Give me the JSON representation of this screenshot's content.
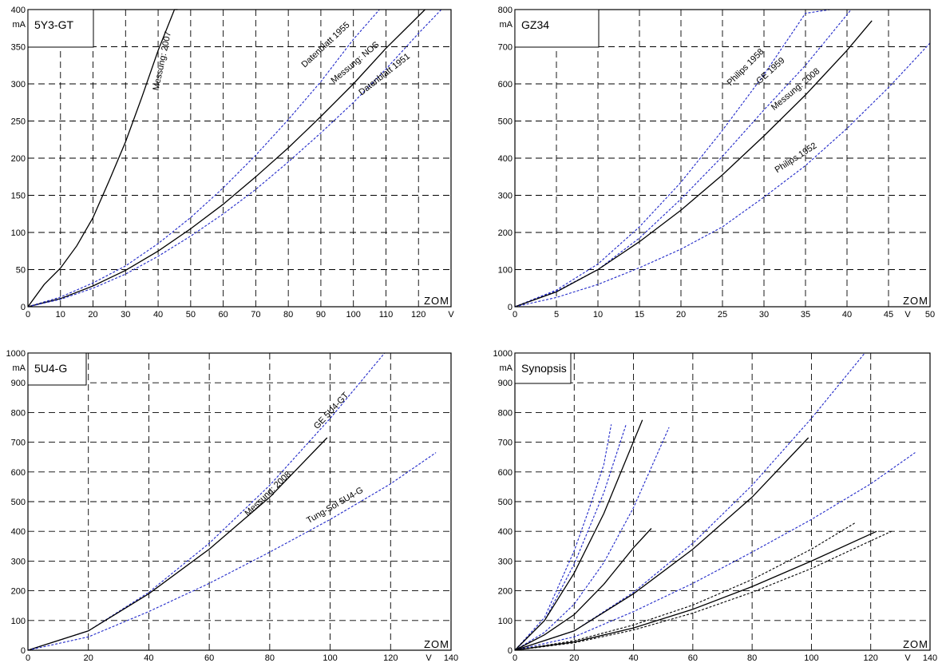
{
  "watermark": "ZOM",
  "chart_data": [
    {
      "type": "line",
      "title": "5Y3-GT",
      "unit_y": "mA",
      "unit_x": "V",
      "xlim": [
        0,
        130
      ],
      "ylim": [
        0,
        400
      ],
      "x_ticks": [
        "0",
        "10",
        "20",
        "30",
        "40",
        "50",
        "60",
        "70",
        "80",
        "90",
        "100",
        "110",
        "120"
      ],
      "y_ticks": [
        "0",
        "50",
        "100",
        "150",
        "200",
        "250",
        "300",
        "350",
        "400"
      ],
      "series": [
        {
          "name": "Messung: 2007",
          "style": "solid",
          "color": "#000000",
          "x": [
            0,
            5,
            10,
            15,
            20,
            25,
            30,
            35,
            40,
            45,
            46
          ],
          "y": [
            0,
            30,
            52,
            82,
            120,
            170,
            222,
            282,
            345,
            400,
            400
          ]
        },
        {
          "name": "Datenblatt 1955",
          "style": "dashed",
          "color": "#1f27c9",
          "x": [
            0,
            10,
            20,
            30,
            40,
            50,
            60,
            70,
            80,
            90,
            100,
            108
          ],
          "y": [
            0,
            13,
            32,
            55,
            85,
            120,
            160,
            204,
            252,
            303,
            360,
            400
          ]
        },
        {
          "name": "Messung: NOS",
          "style": "solid",
          "color": "#000000",
          "x": [
            0,
            10,
            20,
            30,
            40,
            50,
            60,
            70,
            80,
            90,
            100,
            110,
            122
          ],
          "y": [
            0,
            11,
            28,
            49,
            75,
            105,
            138,
            175,
            214,
            256,
            300,
            348,
            400
          ]
        },
        {
          "name": "Datenblatt 1951",
          "style": "dashed",
          "color": "#1f27c9",
          "x": [
            0,
            10,
            20,
            30,
            40,
            50,
            60,
            70,
            80,
            90,
            100,
            110,
            120,
            127
          ],
          "y": [
            0,
            10,
            25,
            44,
            68,
            95,
            125,
            158,
            195,
            234,
            275,
            320,
            368,
            400
          ]
        }
      ],
      "labels": [
        {
          "text": "Messung: 2007",
          "x": 42,
          "y": 330,
          "angle": -78
        },
        {
          "text": "Datenblatt 1955",
          "x": 92,
          "y": 350,
          "angle": -43
        },
        {
          "text": "Messung: NOS",
          "x": 101,
          "y": 326,
          "angle": -40
        },
        {
          "text": "Datenblatt 1951",
          "x": 110,
          "y": 310,
          "angle": -38
        }
      ]
    },
    {
      "type": "line",
      "title": "GZ34",
      "unit_y": "mA",
      "unit_x": "V",
      "xlim": [
        0,
        50
      ],
      "ylim": [
        0,
        800
      ],
      "x_ticks": [
        "0",
        "5",
        "10",
        "15",
        "20",
        "25",
        "30",
        "35",
        "40",
        "45",
        "50"
      ],
      "y_ticks": [
        "0",
        "100",
        "200",
        "300",
        "400",
        "500",
        "600",
        "700",
        "800"
      ],
      "series": [
        {
          "name": "Philips 1958",
          "style": "dashed",
          "color": "#1f27c9",
          "x": [
            0,
            5,
            10,
            15,
            20,
            25,
            30,
            35,
            38
          ],
          "y": [
            0,
            45,
            115,
            215,
            335,
            475,
            625,
            790,
            800
          ]
        },
        {
          "name": "GE 1959",
          "style": "dashed",
          "color": "#1f27c9",
          "x": [
            0,
            5,
            10,
            15,
            20,
            25,
            30,
            35,
            40.5
          ],
          "y": [
            0,
            42,
            100,
            185,
            290,
            405,
            530,
            650,
            800
          ]
        },
        {
          "name": "Messung: 2008",
          "style": "solid",
          "color": "#000000",
          "x": [
            0,
            5,
            10,
            15,
            20,
            25,
            30,
            35,
            40,
            43
          ],
          "y": [
            0,
            40,
            100,
            175,
            260,
            355,
            460,
            570,
            690,
            770
          ]
        },
        {
          "name": "Philips 1952",
          "style": "dashed",
          "color": "#1f27c9",
          "x": [
            0,
            5,
            10,
            15,
            20,
            25,
            30,
            35,
            40,
            45,
            50
          ],
          "y": [
            0,
            25,
            60,
            105,
            155,
            215,
            295,
            380,
            480,
            590,
            710
          ]
        }
      ],
      "labels": [
        {
          "text": "Philips 1958",
          "x": 28,
          "y": 640,
          "angle": -45
        },
        {
          "text": "GE 1959",
          "x": 31,
          "y": 630,
          "angle": -42
        },
        {
          "text": "Messung: 2008",
          "x": 34,
          "y": 580,
          "angle": -40
        },
        {
          "text": "Philips 1952",
          "x": 34,
          "y": 395,
          "angle": -33
        }
      ]
    },
    {
      "type": "line",
      "title": "5U4-G",
      "unit_y": "mA",
      "unit_x": "V",
      "xlim": [
        0,
        140
      ],
      "ylim": [
        0,
        1000
      ],
      "x_ticks": [
        "0",
        "20",
        "40",
        "60",
        "80",
        "100",
        "120",
        "140"
      ],
      "y_ticks": [
        "0",
        "100",
        "200",
        "300",
        "400",
        "500",
        "600",
        "700",
        "800",
        "900",
        "1000"
      ],
      "series": [
        {
          "name": "GE 5U4-GT",
          "style": "dashed",
          "color": "#1f27c9",
          "x": [
            0,
            20,
            40,
            60,
            80,
            100,
            118
          ],
          "y": [
            0,
            65,
            195,
            360,
            555,
            780,
            1000
          ]
        },
        {
          "name": "Messung: 2008",
          "style": "solid",
          "color": "#000000",
          "x": [
            0,
            20,
            40,
            60,
            80,
            99
          ],
          "y": [
            0,
            65,
            190,
            340,
            515,
            715
          ]
        },
        {
          "name": "Tung-Sol 5U4-G",
          "style": "dashed",
          "color": "#1f27c9",
          "x": [
            0,
            20,
            40,
            60,
            80,
            100,
            120,
            135
          ],
          "y": [
            0,
            45,
            130,
            225,
            330,
            440,
            560,
            665
          ]
        }
      ],
      "labels": [
        {
          "text": "GE 5U4-GT",
          "x": 101,
          "y": 800,
          "angle": -47
        },
        {
          "text": "Messung: 2008",
          "x": 80,
          "y": 520,
          "angle": -44
        },
        {
          "text": "Tung-Sol 5U4-G",
          "x": 102,
          "y": 480,
          "angle": -30
        }
      ]
    },
    {
      "type": "line",
      "title": "Synopsis",
      "unit_y": "mA",
      "unit_x": "V",
      "xlim": [
        0,
        140
      ],
      "ylim": [
        0,
        1000
      ],
      "x_ticks": [
        "0",
        "20",
        "40",
        "60",
        "80",
        "100",
        "120",
        "140"
      ],
      "y_ticks": [
        "0",
        "100",
        "200",
        "300",
        "400",
        "500",
        "600",
        "700",
        "800",
        "900",
        "1000"
      ],
      "series": [
        {
          "style": "dashed",
          "color": "#1f27c9",
          "x": [
            0,
            10,
            20,
            25,
            30,
            32.5
          ],
          "y": [
            0,
            110,
            335,
            475,
            625,
            760
          ]
        },
        {
          "style": "dashed",
          "color": "#1f27c9",
          "x": [
            0,
            10,
            20,
            30,
            37.5
          ],
          "y": [
            0,
            100,
            290,
            530,
            760
          ]
        },
        {
          "style": "solid",
          "color": "#000000",
          "x": [
            0,
            10,
            20,
            30,
            43
          ],
          "y": [
            0,
            100,
            260,
            460,
            775
          ]
        },
        {
          "style": "dashed",
          "color": "#1f27c9",
          "x": [
            0,
            10,
            20,
            30,
            40,
            52
          ],
          "y": [
            0,
            60,
            155,
            295,
            480,
            750
          ]
        },
        {
          "style": "solid",
          "color": "#000000",
          "x": [
            0,
            10,
            20,
            30,
            40,
            46
          ],
          "y": [
            0,
            52,
            120,
            222,
            345,
            410
          ]
        },
        {
          "style": "dashed",
          "color": "#1f27c9",
          "x": [
            0,
            20,
            40,
            60,
            80,
            100,
            118
          ],
          "y": [
            0,
            65,
            195,
            360,
            555,
            780,
            1000
          ]
        },
        {
          "style": "solid",
          "color": "#000000",
          "x": [
            0,
            20,
            40,
            60,
            80,
            99
          ],
          "y": [
            0,
            65,
            190,
            340,
            515,
            715
          ]
        },
        {
          "style": "dashed",
          "color": "#1f27c9",
          "x": [
            0,
            20,
            40,
            60,
            80,
            100,
            120,
            135
          ],
          "y": [
            0,
            45,
            130,
            225,
            330,
            440,
            560,
            665
          ]
        },
        {
          "style": "dashed",
          "color": "#000000",
          "x": [
            0,
            20,
            40,
            60,
            80,
            100,
            115
          ],
          "y": [
            0,
            32,
            85,
            152,
            238,
            340,
            430
          ]
        },
        {
          "style": "solid",
          "color": "#000000",
          "x": [
            0,
            20,
            40,
            60,
            80,
            100,
            122
          ],
          "y": [
            0,
            28,
            75,
            138,
            214,
            300,
            400
          ]
        },
        {
          "style": "dashed",
          "color": "#000000",
          "x": [
            0,
            20,
            40,
            60,
            80,
            100,
            120,
            127
          ],
          "y": [
            0,
            25,
            68,
            125,
            195,
            275,
            368,
            400
          ]
        }
      ],
      "labels": []
    }
  ]
}
